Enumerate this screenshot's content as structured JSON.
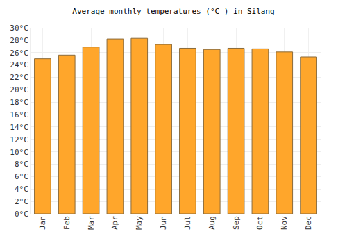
{
  "chart_data": {
    "type": "bar",
    "title": "Average monthly temperatures (°C ) in Silang",
    "categories": [
      "Jan",
      "Feb",
      "Mar",
      "Apr",
      "May",
      "Jun",
      "Jul",
      "Aug",
      "Sep",
      "Oct",
      "Nov",
      "Dec"
    ],
    "values": [
      25.0,
      25.6,
      26.9,
      28.2,
      28.3,
      27.3,
      26.7,
      26.5,
      26.7,
      26.6,
      26.1,
      25.3
    ],
    "color": "#ffa62b",
    "ylim": [
      0,
      30
    ],
    "yticks": [
      {
        "value": 0,
        "label": "0°C"
      },
      {
        "value": 2,
        "label": "2°C"
      },
      {
        "value": 4,
        "label": "4°C"
      },
      {
        "value": 6,
        "label": "6°C"
      },
      {
        "value": 8,
        "label": "8°C"
      },
      {
        "value": 10,
        "label": "10°C"
      },
      {
        "value": 12,
        "label": "12°C"
      },
      {
        "value": 14,
        "label": "14°C"
      },
      {
        "value": 16,
        "label": "16°C"
      },
      {
        "value": 18,
        "label": "18°C"
      },
      {
        "value": 20,
        "label": "20°C"
      },
      {
        "value": 22,
        "label": "22°C"
      },
      {
        "value": 24,
        "label": "24°C"
      },
      {
        "value": 26,
        "label": "26°C"
      },
      {
        "value": 28,
        "label": "28°C"
      },
      {
        "value": 30,
        "label": "30°C"
      }
    ],
    "grid": true
  }
}
